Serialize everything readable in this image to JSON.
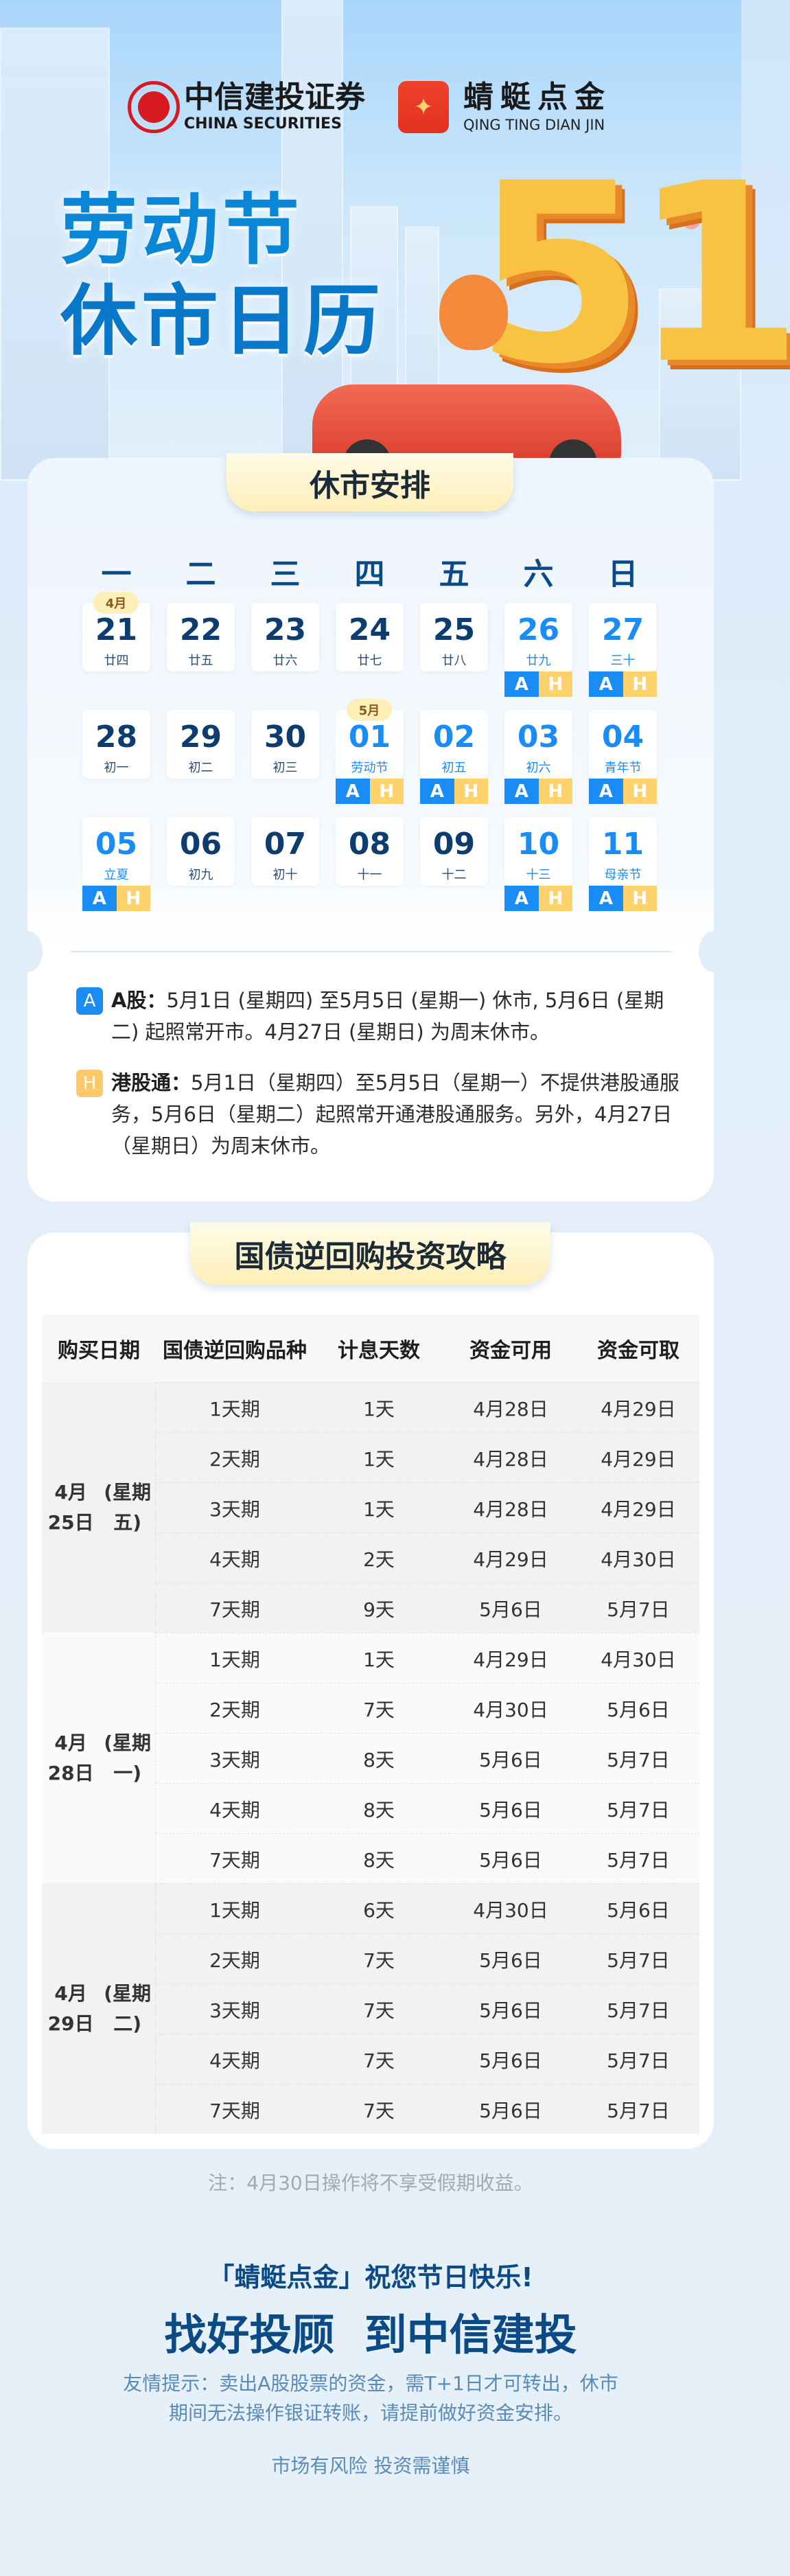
{
  "brand": {
    "citic_name": "中信建投证券",
    "citic_en": "CHINA SECURITIES",
    "app_name": "蜻蜓点金",
    "app_en": "QING TING DIAN JIN"
  },
  "hero": {
    "title_line1": "劳动节",
    "title_line2": "休市日历",
    "big_number": "51"
  },
  "colors": {
    "a_badge": "#1a8cf5",
    "h_badge": "#ffd36b",
    "holiday_text": "#1a8cf5",
    "navy": "#0b4a84"
  },
  "calendar": {
    "section_title": "休市安排",
    "weekdays": [
      "一",
      "二",
      "三",
      "四",
      "五",
      "六",
      "日"
    ],
    "a_label": "A",
    "h_label": "H",
    "weeks": [
      [
        {
          "day": "21",
          "lunar": "廿四",
          "month_tag": "4月",
          "holiday": false,
          "closed": false
        },
        {
          "day": "22",
          "lunar": "廿五",
          "holiday": false,
          "closed": false
        },
        {
          "day": "23",
          "lunar": "廿六",
          "holiday": false,
          "closed": false
        },
        {
          "day": "24",
          "lunar": "廿七",
          "holiday": false,
          "closed": false
        },
        {
          "day": "25",
          "lunar": "廿八",
          "holiday": false,
          "closed": false
        },
        {
          "day": "26",
          "lunar": "廿九",
          "holiday": true,
          "closed": true
        },
        {
          "day": "27",
          "lunar": "三十",
          "holiday": true,
          "closed": true
        }
      ],
      [
        {
          "day": "28",
          "lunar": "初一",
          "holiday": false,
          "closed": false
        },
        {
          "day": "29",
          "lunar": "初二",
          "holiday": false,
          "closed": false
        },
        {
          "day": "30",
          "lunar": "初三",
          "holiday": false,
          "closed": false
        },
        {
          "day": "01",
          "lunar": "劳动节",
          "month_tag": "5月",
          "holiday": true,
          "closed": true
        },
        {
          "day": "02",
          "lunar": "初五",
          "holiday": true,
          "closed": true
        },
        {
          "day": "03",
          "lunar": "初六",
          "holiday": true,
          "closed": true
        },
        {
          "day": "04",
          "lunar": "青年节",
          "holiday": true,
          "closed": true
        }
      ],
      [
        {
          "day": "05",
          "lunar": "立夏",
          "holiday": true,
          "closed": true
        },
        {
          "day": "06",
          "lunar": "初九",
          "holiday": false,
          "closed": false
        },
        {
          "day": "07",
          "lunar": "初十",
          "holiday": false,
          "closed": false
        },
        {
          "day": "08",
          "lunar": "十一",
          "holiday": false,
          "closed": false
        },
        {
          "day": "09",
          "lunar": "十二",
          "holiday": false,
          "closed": false
        },
        {
          "day": "10",
          "lunar": "十三",
          "holiday": true,
          "closed": true
        },
        {
          "day": "11",
          "lunar": "母亲节",
          "holiday": true,
          "closed": true
        }
      ]
    ],
    "legend_a_title": "A股：",
    "legend_a_text": "5月1日 (星期四) 至5月5日 (星期一) 休市, 5月6日 (星期二) 起照常开市。4月27日 (星期日) 为周末休市。",
    "legend_h_title": "港股通：",
    "legend_h_text": "5月1日（星期四）至5月5日（星期一）不提供港股通服务，5月6日（星期二）起照常开通港股通服务。另外，4月27日（星期日）为周末休市。"
  },
  "repo": {
    "section_title": "国债逆回购投资攻略",
    "headers": [
      "购买日期",
      "国债逆回购品种",
      "计息天数",
      "资金可用",
      "资金可取"
    ],
    "groups": [
      {
        "date": "4月25日",
        "weekday": "(星期五)",
        "rows": [
          [
            "1天期",
            "1天",
            "4月28日",
            "4月29日"
          ],
          [
            "2天期",
            "1天",
            "4月28日",
            "4月29日"
          ],
          [
            "3天期",
            "1天",
            "4月28日",
            "4月29日"
          ],
          [
            "4天期",
            "2天",
            "4月29日",
            "4月30日"
          ],
          [
            "7天期",
            "9天",
            "5月6日",
            "5月7日"
          ]
        ]
      },
      {
        "date": "4月28日",
        "weekday": "(星期一)",
        "rows": [
          [
            "1天期",
            "1天",
            "4月29日",
            "4月30日"
          ],
          [
            "2天期",
            "7天",
            "4月30日",
            "5月6日"
          ],
          [
            "3天期",
            "8天",
            "5月6日",
            "5月7日"
          ],
          [
            "4天期",
            "8天",
            "5月6日",
            "5月7日"
          ],
          [
            "7天期",
            "8天",
            "5月6日",
            "5月7日"
          ]
        ]
      },
      {
        "date": "4月29日",
        "weekday": "(星期二)",
        "rows": [
          [
            "1天期",
            "6天",
            "4月30日",
            "5月6日"
          ],
          [
            "2天期",
            "7天",
            "5月6日",
            "5月7日"
          ],
          [
            "3天期",
            "7天",
            "5月6日",
            "5月7日"
          ],
          [
            "4天期",
            "7天",
            "5月6日",
            "5月7日"
          ],
          [
            "7天期",
            "7天",
            "5月6日",
            "5月7日"
          ]
        ]
      }
    ],
    "note": "注：4月30日操作将不享受假期收益。"
  },
  "footer": {
    "greeting": "「蜻蜓点金」祝您节日快乐!",
    "slogan": "找好投顾  到中信建投",
    "tip": "友情提示：卖出A股股票的资金，需T+1日才可转出，休市期间无法操作银证转账，请提前做好资金安排。",
    "risk": "市场有风险 投资需谨慎"
  }
}
